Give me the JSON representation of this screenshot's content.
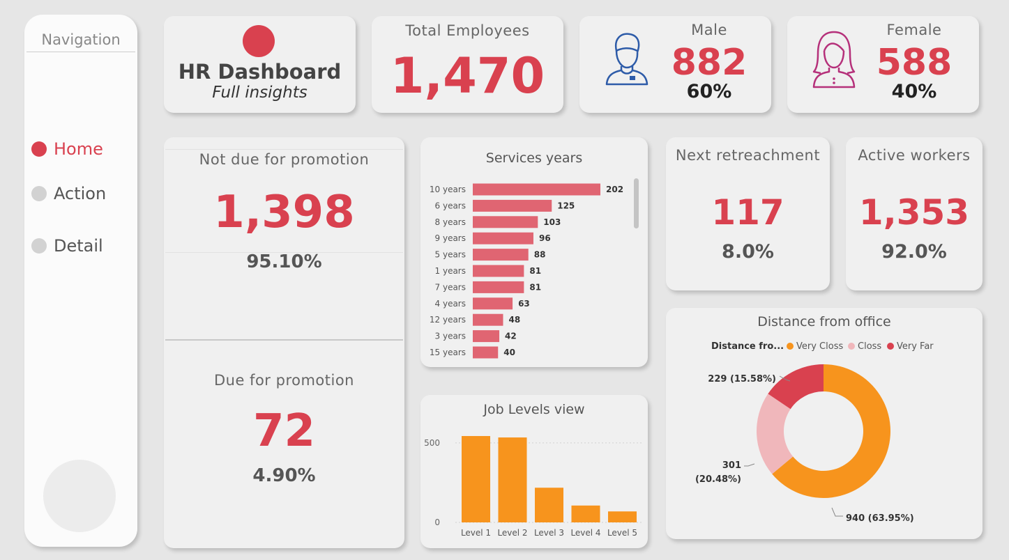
{
  "nav": {
    "title": "Navigation",
    "items": [
      {
        "label": "Home",
        "active": true
      },
      {
        "label": "Action",
        "active": false
      },
      {
        "label": "Detail",
        "active": false
      }
    ]
  },
  "header": {
    "title": "HR Dashboard",
    "subtitle": "Full insights"
  },
  "total": {
    "label": "Total Employees",
    "value": "1,470"
  },
  "male": {
    "label": "Male",
    "value": "882",
    "pct": "60%"
  },
  "female": {
    "label": "Female",
    "value": "588",
    "pct": "40%"
  },
  "not_due": {
    "label": "Not due for promotion",
    "value": "1,398",
    "pct": "95.10%"
  },
  "due": {
    "label": "Due for promotion",
    "value": "72",
    "pct": "4.90%"
  },
  "retrench": {
    "label": "Next retreachment",
    "value": "117",
    "pct": "8.0%"
  },
  "active": {
    "label": "Active workers",
    "value": "1,353",
    "pct": "92.0%"
  },
  "colors": {
    "accent": "#d9414f",
    "bar": "#e06572",
    "orange": "#f7941d",
    "pink": "#f0b7bb"
  },
  "chart_data": [
    {
      "type": "bar",
      "orientation": "horizontal",
      "title": "Services years",
      "categories": [
        "10 years",
        "6 years",
        "8 years",
        "9 years",
        "5 years",
        "1 years",
        "7 years",
        "4 years",
        "12 years",
        "3 years",
        "15 years"
      ],
      "values": [
        202,
        125,
        103,
        96,
        88,
        81,
        81,
        63,
        48,
        42,
        40
      ]
    },
    {
      "type": "bar",
      "title": "Job Levels view",
      "categories": [
        "Level 1",
        "Level 2",
        "Level 3",
        "Level 4",
        "Level 5"
      ],
      "values": [
        543,
        534,
        218,
        106,
        69
      ],
      "ylim": [
        0,
        600
      ],
      "yticks": [
        "0",
        "500"
      ]
    },
    {
      "type": "pie",
      "title": "Distance from office",
      "legend_title": "Distance fro...",
      "slices": [
        {
          "label": "Very Closs",
          "value": 940,
          "pct": "63.95%",
          "data_label": "940 (63.95%)"
        },
        {
          "label": "Closs",
          "value": 301,
          "pct": "20.48%",
          "data_label_1": "301",
          "data_label_2": "(20.48%)"
        },
        {
          "label": "Very Far",
          "value": 229,
          "pct": "15.58%",
          "data_label": "229 (15.58%)"
        }
      ]
    }
  ]
}
